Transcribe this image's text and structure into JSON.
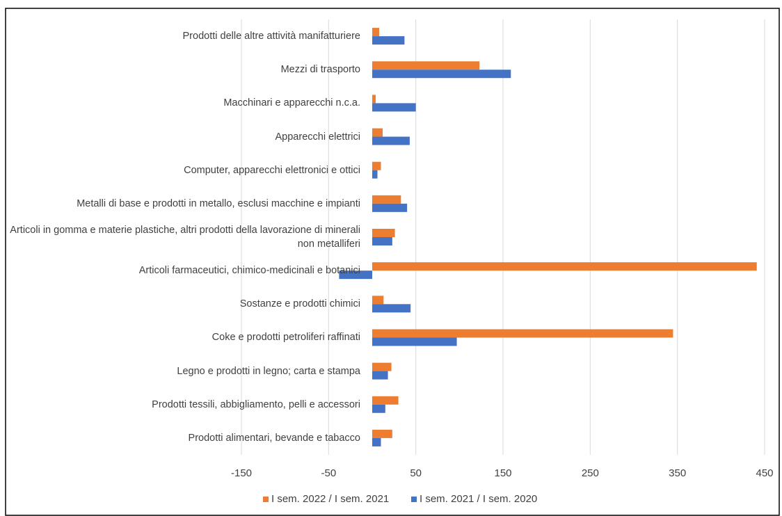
{
  "chart_data": {
    "type": "bar",
    "orientation": "horizontal",
    "categories": [
      "Prodotti delle altre attività manifatturiere",
      "Mezzi di trasporto",
      "Macchinari e apparecchi n.c.a.",
      "Apparecchi elettrici",
      "Computer, apparecchi elettronici e ottici",
      "Metalli di base e prodotti in metallo, esclusi macchine e impianti",
      "Articoli in gomma e materie plastiche, altri prodotti della lavorazione di minerali non metalliferi",
      "Articoli farmaceutici, chimico-medicinali e botanici",
      "Sostanze e prodotti chimici",
      "Coke e prodotti petroliferi raffinati",
      "Legno e prodotti in legno; carta e stampa",
      "Prodotti tessili, abbigliamento, pelli e accessori",
      "Prodotti alimentari, bevande e tabacco"
    ],
    "series": [
      {
        "name": "I sem. 2022 / I sem. 2021",
        "color": "#ed7d31",
        "values": [
          8,
          123,
          4,
          12,
          10,
          33,
          26,
          441,
          13,
          345,
          22,
          30,
          23
        ]
      },
      {
        "name": "I sem. 2021 / I sem. 2020",
        "color": "#4472c4",
        "values": [
          37,
          159,
          50,
          43,
          6,
          40,
          23,
          -38,
          44,
          97,
          18,
          15,
          10
        ]
      }
    ],
    "xlim": [
      -150,
      450
    ],
    "xticks": [
      -150,
      -50,
      50,
      150,
      250,
      350,
      450
    ],
    "grid": true,
    "legend": "bottom"
  }
}
